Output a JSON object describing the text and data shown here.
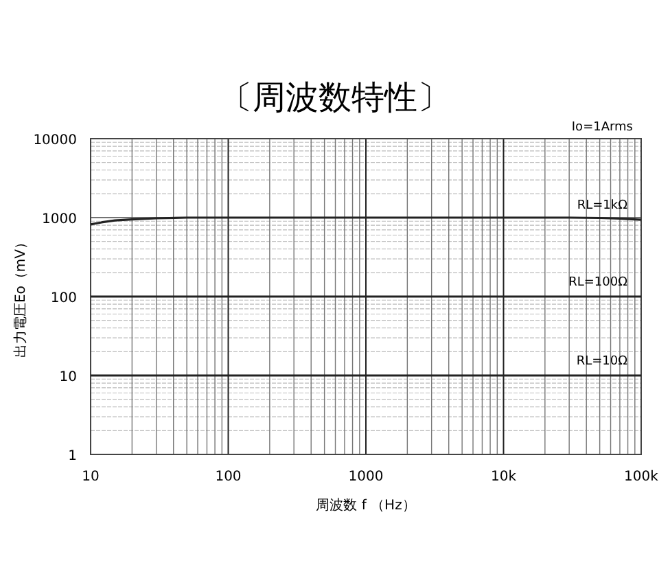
{
  "chart_data": {
    "type": "line",
    "title": "〔周波数特性〕",
    "xlabel": "周波数 f （Hz）",
    "ylabel": "出力電圧Eo（mV）",
    "log": "xy",
    "grid": true,
    "x": [
      10,
      12,
      15,
      20,
      30,
      50,
      100,
      1000,
      10000,
      30000,
      50000,
      70000,
      100000
    ],
    "series": [
      {
        "name": "RL=1kΩ",
        "color": "#222222",
        "values": [
          820,
          870,
          920,
          950,
          980,
          1000,
          1000,
          1000,
          1000,
          1000,
          990,
          970,
          940
        ]
      },
      {
        "name": "RL=100Ω",
        "color": "#222222",
        "values": [
          100,
          100,
          100,
          100,
          100,
          100,
          100,
          100,
          100,
          100,
          100,
          100,
          100
        ]
      },
      {
        "name": "RL=10Ω",
        "color": "#222222",
        "values": [
          10,
          10,
          10,
          10,
          10,
          10,
          10,
          10,
          10,
          10,
          10,
          10,
          10
        ]
      }
    ],
    "xlim": [
      10,
      100000
    ],
    "ylim": [
      1,
      10000
    ],
    "xticks": [
      10,
      100,
      1000,
      {
        "value": 10000,
        "label": "10k"
      },
      {
        "value": 100000,
        "label": "100k"
      }
    ],
    "yticks": [
      1,
      10,
      100,
      1000,
      10000
    ],
    "annotations": [
      "Io=1Arms"
    ]
  }
}
